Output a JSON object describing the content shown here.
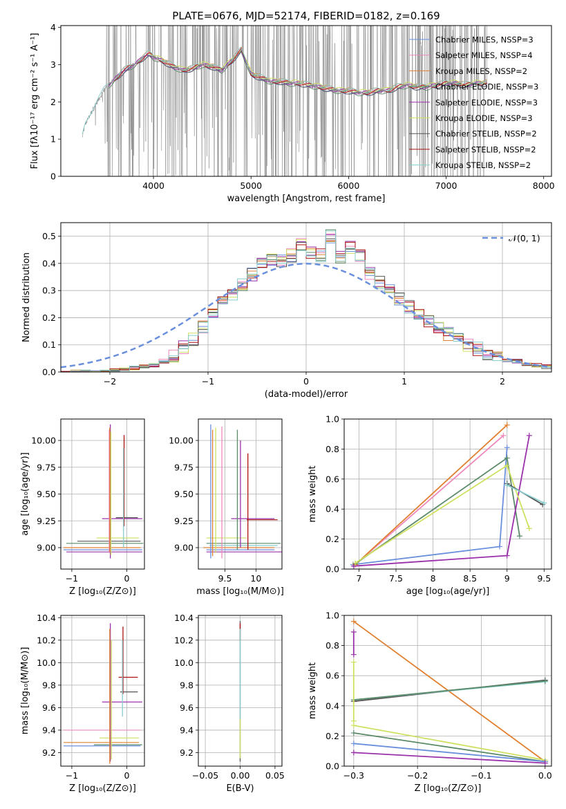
{
  "figure": {
    "title": "PLATE=0676, MJD=52174, FIBERID=0182, z=0.169",
    "series_colors": [
      "#6a8fdd",
      "#ee88bb",
      "#e08030",
      "#5a8a68",
      "#9a30aa",
      "#cfe060",
      "#555555",
      "#aa1111",
      "#88cccc"
    ],
    "data_color": "#808080"
  },
  "chart_data": [
    {
      "id": "spectrum",
      "type": "line",
      "xlabel": "wavelength [Angstrom, rest frame]",
      "ylabel": "Flux [fλ10⁻¹⁷ erg cm⁻² s⁻¹ A⁻¹]",
      "xlim": [
        3050,
        8080
      ],
      "ylim": [
        0,
        4.05
      ],
      "xticks": [
        4000,
        5000,
        6000,
        7000,
        8000
      ],
      "yticks": [
        0,
        1,
        2,
        3,
        4
      ],
      "legend_position": "top-right",
      "legend": [
        "Chabrier MILES, NSSP=3",
        "Salpeter MILES, NSSP=4",
        "Kroupa MILES, NSSP=2",
        "Chabrier ELODIE, NSSP=3",
        "Salpeter ELODIE, NSSP=3",
        "Kroupa ELODIE, NSSP=3",
        "Chabrier STELIB, NSSP=2",
        "Salpeter STELIB, NSSP=2",
        "Kroupa STELIB, NSSP=2"
      ],
      "continuum": {
        "x": [
          3270,
          3300,
          3400,
          3500,
          3600,
          3700,
          3800,
          3850,
          3900,
          3950,
          4000,
          4100,
          4200,
          4300,
          4400,
          4500,
          4600,
          4700,
          4800,
          4900,
          5000,
          5100,
          5200,
          5300,
          5400,
          5500,
          5600,
          5700,
          5800,
          5900,
          6000,
          6100,
          6200,
          6300,
          6400,
          6500,
          6600,
          6700,
          6800,
          6900,
          7000,
          7100,
          7200,
          7300,
          7400
        ],
        "y": [
          1.05,
          1.4,
          1.9,
          2.35,
          2.6,
          2.85,
          3.0,
          3.1,
          3.2,
          3.3,
          3.2,
          3.1,
          2.95,
          2.85,
          2.9,
          3.0,
          2.95,
          2.85,
          3.1,
          3.4,
          2.75,
          2.65,
          2.55,
          2.55,
          2.5,
          2.5,
          2.45,
          2.4,
          2.35,
          2.3,
          2.3,
          2.25,
          2.25,
          2.3,
          2.3,
          2.4,
          2.45,
          2.4,
          2.4,
          2.45,
          2.5,
          2.5,
          2.45,
          2.5,
          2.5
        ]
      }
    },
    {
      "id": "residuals",
      "type": "histogram",
      "xlabel": "(data-model)/error",
      "ylabel": "Normed distribution",
      "xlim": [
        -2.5,
        2.5
      ],
      "ylim": [
        0,
        0.55
      ],
      "xticks": [
        -2,
        -1,
        0,
        1,
        2
      ],
      "yticks": [
        0.0,
        0.1,
        0.2,
        0.3,
        0.4,
        0.5
      ],
      "bin_edges_start": -2.5,
      "bin_width": 0.1,
      "hist": [
        0.0,
        0.0,
        0.0,
        0.0,
        0.0,
        0.005,
        0.01,
        0.015,
        0.02,
        0.025,
        0.04,
        0.06,
        0.09,
        0.12,
        0.17,
        0.22,
        0.26,
        0.28,
        0.32,
        0.36,
        0.4,
        0.41,
        0.41,
        0.43,
        0.47,
        0.44,
        0.43,
        0.5,
        0.42,
        0.46,
        0.43,
        0.36,
        0.33,
        0.3,
        0.27,
        0.24,
        0.21,
        0.19,
        0.16,
        0.14,
        0.12,
        0.1,
        0.085,
        0.07,
        0.055,
        0.045,
        0.04,
        0.03,
        0.025,
        0.02
      ],
      "gaussian_label": "𝒩(0, 1)",
      "legend_position": "top-right"
    },
    {
      "id": "age-vs-Z",
      "type": "errorbar",
      "xlabel": "Z [log₁₀(Z/Z⊙)]",
      "ylabel": "age  [log₁₀(age/yr)]",
      "xlim": [
        -1.2,
        0.32
      ],
      "ylim": [
        8.8,
        10.2
      ],
      "xticks": [
        -1,
        0
      ],
      "yticks": [
        9.0,
        9.25,
        9.5,
        9.75,
        10.0
      ],
      "ytick_labels": [
        "9.00",
        "9.25",
        "9.50",
        "9.75",
        "10.00"
      ],
      "hbars": [
        {
          "c": 4,
          "y": 9.27,
          "x0": -0.45,
          "x1": 0.28
        },
        {
          "c": 6,
          "y": 9.28,
          "x0": -0.2,
          "x1": 0.2
        },
        {
          "c": 5,
          "y": 9.09,
          "x0": -0.55,
          "x1": 0.22
        },
        {
          "c": 6,
          "y": 9.06,
          "x0": -0.9,
          "x1": 0.25
        },
        {
          "c": 3,
          "y": 9.04,
          "x0": -1.1,
          "x1": 0.3
        },
        {
          "c": 2,
          "y": 9.0,
          "x0": -1.15,
          "x1": 0.25
        },
        {
          "c": 0,
          "y": 8.98,
          "x0": -1.15,
          "x1": 0.28
        },
        {
          "c": 4,
          "y": 8.96,
          "x0": -1.1,
          "x1": 0.28
        }
      ],
      "vbars": [
        {
          "c": 4,
          "x": -0.3,
          "y0": 8.9,
          "y1": 10.15
        },
        {
          "c": 1,
          "x": -0.32,
          "y0": 8.95,
          "y1": 10.1
        },
        {
          "c": 5,
          "x": -0.29,
          "y0": 8.93,
          "y1": 10.08
        },
        {
          "c": 2,
          "x": -0.31,
          "y0": 8.96,
          "y1": 10.12
        },
        {
          "c": 7,
          "x": -0.05,
          "y0": 9.2,
          "y1": 10.05
        },
        {
          "c": 8,
          "x": -0.06,
          "y0": 9.0,
          "y1": 9.93
        }
      ]
    },
    {
      "id": "age-vs-mass",
      "type": "errorbar",
      "xlabel": "mass [log₁₀(M/M⊙)]",
      "ylabel": "",
      "xlim": [
        9.07,
        10.42
      ],
      "ylim": [
        8.8,
        10.2
      ],
      "xticks": [
        9.5,
        10.0
      ],
      "yticks": [
        9.0,
        9.25,
        9.5,
        9.75,
        10.0
      ],
      "ytick_labels": [
        "9.00",
        "9.25",
        "9.50",
        "9.75",
        "10.00"
      ],
      "hbars": [
        {
          "c": 4,
          "y": 9.27,
          "x0": 9.6,
          "x1": 10.3
        },
        {
          "c": 7,
          "y": 9.26,
          "x0": 9.85,
          "x1": 10.35
        },
        {
          "c": 5,
          "y": 9.09,
          "x0": 9.2,
          "x1": 9.85
        },
        {
          "c": 3,
          "y": 9.04,
          "x0": 9.2,
          "x1": 10.4
        },
        {
          "c": 8,
          "y": 9.02,
          "x0": 9.25,
          "x1": 10.35
        },
        {
          "c": 2,
          "y": 9.0,
          "x0": 9.15,
          "x1": 10.3
        },
        {
          "c": 0,
          "y": 8.98,
          "x0": 9.2,
          "x1": 10.3
        },
        {
          "c": 4,
          "y": 8.96,
          "x0": 9.2,
          "x1": 10.42
        }
      ],
      "vbars": [
        {
          "c": 0,
          "x": 9.27,
          "y0": 8.9,
          "y1": 10.15
        },
        {
          "c": 2,
          "x": 9.3,
          "y0": 8.92,
          "y1": 10.1
        },
        {
          "c": 5,
          "x": 9.35,
          "y0": 8.95,
          "y1": 10.12
        },
        {
          "c": 1,
          "x": 9.45,
          "y0": 8.9,
          "y1": 10.13
        },
        {
          "c": 3,
          "x": 9.7,
          "y0": 8.98,
          "y1": 10.1
        },
        {
          "c": 4,
          "x": 9.75,
          "y0": 9.0,
          "y1": 10.0
        },
        {
          "c": 7,
          "x": 9.87,
          "y0": 8.98,
          "y1": 9.88
        }
      ]
    },
    {
      "id": "weight-vs-age",
      "type": "line",
      "xlabel": "age  [log₁₀(age/yr)]",
      "ylabel": "mass weight",
      "xlim": [
        6.8,
        9.6
      ],
      "ylim": [
        0,
        1.0
      ],
      "xticks": [
        7.0,
        7.5,
        8.0,
        8.5,
        9.0,
        9.5
      ],
      "yticks": [
        0.0,
        0.2,
        0.4,
        0.6,
        0.8,
        1.0
      ],
      "series": [
        {
          "c": 0,
          "x": [
            6.92,
            8.9,
            9.0
          ],
          "y": [
            0.03,
            0.15,
            0.81
          ]
        },
        {
          "c": 1,
          "x": [
            6.95,
            8.95
          ],
          "y": [
            0.03,
            0.89
          ]
        },
        {
          "c": 2,
          "x": [
            6.95,
            9.0
          ],
          "y": [
            0.03,
            0.96
          ]
        },
        {
          "c": 3,
          "x": [
            6.95,
            9.0,
            9.17
          ],
          "y": [
            0.035,
            0.74,
            0.22
          ]
        },
        {
          "c": 4,
          "x": [
            6.93,
            9.0,
            9.3
          ],
          "y": [
            0.02,
            0.09,
            0.89
          ]
        },
        {
          "c": 5,
          "x": [
            6.95,
            9.0,
            9.3
          ],
          "y": [
            0.04,
            0.69,
            0.27
          ]
        },
        {
          "c": 6,
          "x": [
            9.0,
            9.48
          ],
          "y": [
            0.57,
            0.43
          ]
        },
        {
          "c": 8,
          "x": [
            9.0,
            9.5
          ],
          "y": [
            0.56,
            0.44
          ]
        }
      ]
    },
    {
      "id": "mass-vs-Z",
      "type": "errorbar",
      "xlabel": "Z [log₁₀(Z/Z⊙)]",
      "ylabel": "mass [log₁₀(M/M⊙)]",
      "xlim": [
        -1.2,
        0.32
      ],
      "ylim": [
        9.08,
        10.42
      ],
      "xticks": [
        -1,
        0
      ],
      "yticks": [
        9.2,
        9.4,
        9.6,
        9.8,
        10.0,
        10.2,
        10.4
      ],
      "hbars": [
        {
          "c": 7,
          "y": 9.87,
          "x0": -0.15,
          "x1": 0.2
        },
        {
          "c": 6,
          "y": 9.74,
          "x0": -0.12,
          "x1": 0.2
        },
        {
          "c": 4,
          "y": 9.65,
          "x0": -0.45,
          "x1": 0.28
        },
        {
          "c": 1,
          "y": 9.4,
          "x0": -1.15,
          "x1": 0.25
        },
        {
          "c": 5,
          "y": 9.33,
          "x0": -0.5,
          "x1": 0.22
        },
        {
          "c": 2,
          "y": 9.29,
          "x0": -1.15,
          "x1": 0.22
        },
        {
          "c": 3,
          "y": 9.27,
          "x0": -0.6,
          "x1": 0.28
        },
        {
          "c": 0,
          "y": 9.26,
          "x0": -1.15,
          "x1": 0.25
        }
      ],
      "vbars": [
        {
          "c": 4,
          "x": -0.3,
          "y0": 9.12,
          "y1": 10.35
        },
        {
          "c": 5,
          "x": -0.28,
          "y0": 9.14,
          "y1": 10.2
        },
        {
          "c": 2,
          "x": -0.31,
          "y0": 9.1,
          "y1": 10.3
        },
        {
          "c": 7,
          "x": -0.07,
          "y0": 9.72,
          "y1": 10.32
        },
        {
          "c": 8,
          "x": -0.08,
          "y0": 9.52,
          "y1": 10.2
        }
      ]
    },
    {
      "id": "mass-vs-ebv",
      "type": "errorbar",
      "xlabel": "E(B-V)",
      "ylabel": "",
      "xlim": [
        -0.06,
        0.06
      ],
      "ylim": [
        9.08,
        10.42
      ],
      "xticks": [
        -0.05,
        0.0,
        0.05
      ],
      "xtick_labels": [
        "−0.05",
        "0.00",
        "0.05"
      ],
      "yticks": [
        9.2,
        9.4,
        9.6,
        9.8,
        10.0,
        10.2,
        10.4
      ],
      "vbars": [
        {
          "c": 6,
          "x": 0.0,
          "y0": 9.12,
          "y1": 10.37
        },
        {
          "c": 7,
          "x": 0.0,
          "y0": 10.2,
          "y1": 10.35
        },
        {
          "c": 8,
          "x": 0.0,
          "y0": 9.3,
          "y1": 10.3
        },
        {
          "c": 5,
          "x": 0.0,
          "y0": 9.15,
          "y1": 9.5
        }
      ]
    },
    {
      "id": "weight-vs-Z",
      "type": "line",
      "xlabel": "Z [log₁₀(Z/Z⊙)]",
      "ylabel": "mass weight",
      "xlim": [
        -0.315,
        0.01
      ],
      "ylim": [
        0,
        1.0
      ],
      "xticks": [
        -0.3,
        -0.2,
        -0.1,
        0.0
      ],
      "xtick_labels": [
        "−0.3",
        "−0.2",
        "−0.1",
        "0.0"
      ],
      "yticks": [
        0.0,
        0.2,
        0.4,
        0.6,
        0.8,
        1.0
      ],
      "series": [
        {
          "c": 2,
          "x": [
            -0.3,
            0.0
          ],
          "y": [
            0.96,
            0.03
          ]
        },
        {
          "c": 6,
          "x": [
            -0.3,
            0.0
          ],
          "y": [
            0.43,
            0.57
          ]
        },
        {
          "c": 8,
          "x": [
            -0.3,
            0.0
          ],
          "y": [
            0.44,
            0.56
          ]
        },
        {
          "c": 3,
          "x": [
            -0.3,
            0.0
          ],
          "y": [
            0.44,
            0.565
          ]
        },
        {
          "c": 5,
          "x": [
            -0.3,
            0.0
          ],
          "y": [
            0.27,
            0.04
          ]
        },
        {
          "c": 3,
          "x": [
            -0.3,
            0.0
          ],
          "y": [
            0.22,
            0.03
          ]
        },
        {
          "c": 0,
          "x": [
            -0.3,
            0.0
          ],
          "y": [
            0.15,
            0.03
          ]
        },
        {
          "c": 4,
          "x": [
            -0.3,
            0.0
          ],
          "y": [
            0.09,
            0.02
          ]
        },
        {
          "c": 4,
          "x": [
            -0.3,
            -0.3
          ],
          "y": [
            0.89,
            0.74
          ]
        },
        {
          "c": 5,
          "x": [
            -0.3,
            -0.3
          ],
          "y": [
            0.69,
            0.3
          ]
        }
      ]
    }
  ]
}
